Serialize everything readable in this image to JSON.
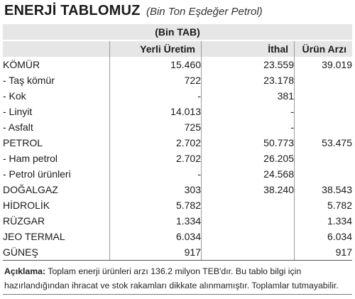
{
  "header": {
    "title": "ENERJİ TABLOMUZ",
    "subtitle": "(Bin Ton Eşdeğer Petrol)"
  },
  "table": {
    "unit": "(Bin TAB)",
    "columns": [
      "",
      "Yerli Üretim",
      "İthal",
      "Ürün Arzı"
    ],
    "rows": [
      {
        "label": "KÖMÜR",
        "yerli": "15.460",
        "ithal": "23.559",
        "arz": "39.019",
        "sub": false
      },
      {
        "label": "- Taş kömür",
        "yerli": "722",
        "ithal": "23.178",
        "arz": "",
        "sub": true
      },
      {
        "label": "- Kok",
        "yerli": "-",
        "ithal": "381",
        "arz": "",
        "sub": true
      },
      {
        "label": "- Linyit",
        "yerli": "14.013",
        "ithal": "-",
        "arz": "",
        "sub": true
      },
      {
        "label": "- Asfalt",
        "yerli": "725",
        "ithal": "-",
        "arz": "",
        "sub": true
      },
      {
        "label": "PETROL",
        "yerli": "2.702",
        "ithal": "50.773",
        "arz": "53.475",
        "sub": false
      },
      {
        "label": "- Ham petrol",
        "yerli": "2.702",
        "ithal": "26.205",
        "arz": "",
        "sub": true
      },
      {
        "label": "- Petrol ürünleri",
        "yerli": "-",
        "ithal": "24.568",
        "arz": "",
        "sub": true
      },
      {
        "label": "DOĞALGAZ",
        "yerli": "303",
        "ithal": "38.240",
        "arz": "38.543",
        "sub": false
      },
      {
        "label": "HİDROLİK",
        "yerli": "5.782",
        "ithal": "",
        "arz": "5.782",
        "sub": false
      },
      {
        "label": "RÜZGAR",
        "yerli": "1.334",
        "ithal": "",
        "arz": "1.334",
        "sub": false
      },
      {
        "label": "JEO TERMAL",
        "yerli": "6.034",
        "ithal": "",
        "arz": "6.034",
        "sub": false
      },
      {
        "label": "GÜNEŞ",
        "yerli": "917",
        "ithal": "",
        "arz": "917",
        "sub": false
      }
    ]
  },
  "note": {
    "label": "Açıklama:",
    "text": "Toplam enerji ürünleri arzı 136.2 milyon TEB'dır. Bu tablo bilgi için hazırlandığından ihracat ve stok rakamları dikkate alınmamıştır. Toplamlar tutmayabilir."
  }
}
